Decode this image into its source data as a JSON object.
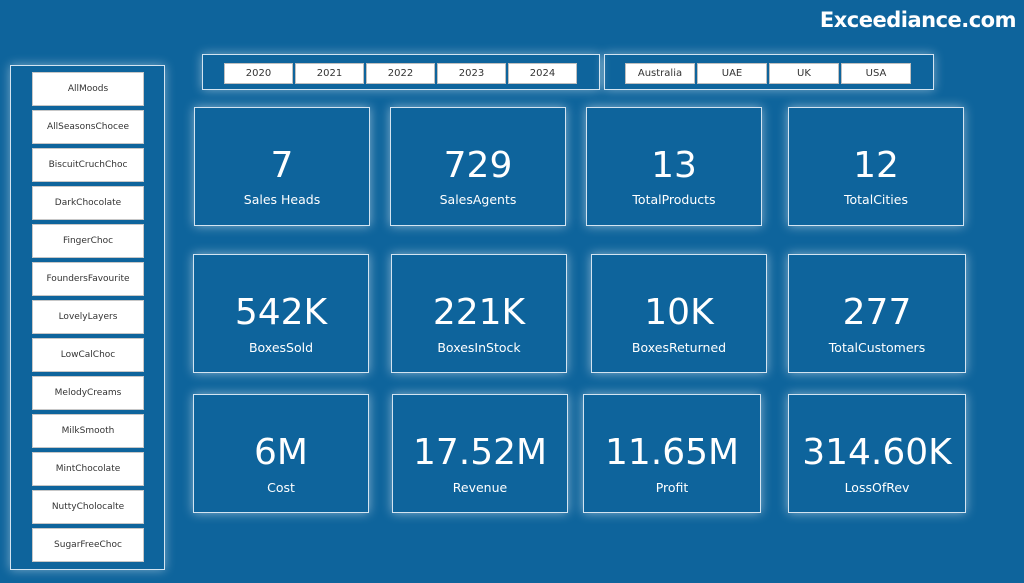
{
  "brand": "Exceediance.com",
  "products": [
    "AllMoods",
    "AllSeasonsChocee",
    "BiscuitCruchChoc",
    "DarkChocolate",
    "FingerChoc",
    "FoundersFavourite",
    "LovelyLayers",
    "LowCalChoc",
    "MelodyCreams",
    "MilkSmooth",
    "MintChocolate",
    "NuttyCholocalte",
    "SugarFreeChoc"
  ],
  "years": [
    "2020",
    "2021",
    "2022",
    "2023",
    "2024"
  ],
  "countries": [
    "Australia",
    "UAE",
    "UK",
    "USA"
  ],
  "kpis": [
    {
      "value": "7",
      "label": "Sales Heads"
    },
    {
      "value": "729",
      "label": "SalesAgents"
    },
    {
      "value": "13",
      "label": "TotalProducts"
    },
    {
      "value": "12",
      "label": "TotalCities"
    },
    {
      "value": "542K",
      "label": "BoxesSold"
    },
    {
      "value": "221K",
      "label": "BoxesInStock"
    },
    {
      "value": "10K",
      "label": "BoxesReturned"
    },
    {
      "value": "277",
      "label": "TotalCustomers"
    },
    {
      "value": "6M",
      "label": "Cost"
    },
    {
      "value": "17.52M",
      "label": "Revenue"
    },
    {
      "value": "11.65M",
      "label": "Profit"
    },
    {
      "value": "314.60K",
      "label": "LossOfRev"
    }
  ]
}
